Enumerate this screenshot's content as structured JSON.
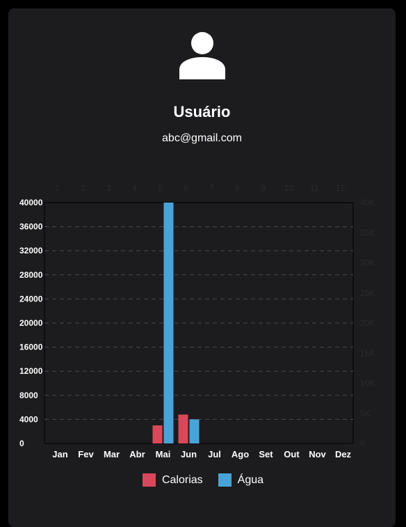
{
  "profile": {
    "name": "Usuário",
    "email": "abc@gmail.com"
  },
  "colors": {
    "calorias": "#d9485a",
    "agua": "#4aa3d8"
  },
  "chart_data": {
    "type": "bar",
    "categories": [
      "Jan",
      "Fev",
      "Mar",
      "Abr",
      "Mai",
      "Jun",
      "Jul",
      "Ago",
      "Set",
      "Out",
      "Nov",
      "Dez"
    ],
    "top_ticks": [
      "1",
      "2",
      "3",
      "4",
      "5",
      "6",
      "7",
      "8",
      "9",
      "10",
      "11",
      "12"
    ],
    "left_ticks": [
      "0",
      "4000",
      "8000",
      "12000",
      "16000",
      "20000",
      "24000",
      "28000",
      "32000",
      "36000",
      "40000"
    ],
    "right_ticks": [
      "0",
      "5K",
      "10K",
      "15K",
      "20K",
      "25K",
      "30K",
      "35K",
      "40K"
    ],
    "ylim_left": [
      0,
      40000
    ],
    "ylim_right": [
      0,
      40000
    ],
    "grid": true,
    "legend_position": "bottom",
    "series": [
      {
        "name": "Calorias",
        "values": [
          0,
          0,
          0,
          0,
          3000,
          4800,
          0,
          0,
          0,
          0,
          0,
          0
        ]
      },
      {
        "name": "Água",
        "values": [
          0,
          0,
          0,
          0,
          40000,
          4000,
          0,
          0,
          0,
          0,
          0,
          0
        ]
      }
    ]
  }
}
